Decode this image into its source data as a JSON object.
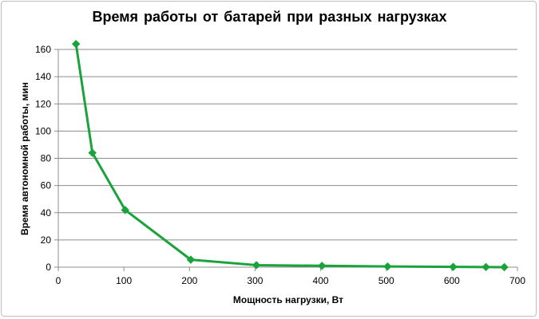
{
  "chart_data": {
    "type": "line",
    "title": "Время работы  от батарей  при разных  нагрузках",
    "xlabel": "Мощность нагрузки, Вт",
    "ylabel": "Время автономной работы, мин",
    "xlim": [
      0,
      700
    ],
    "ylim": [
      0,
      160
    ],
    "xticks": [
      0,
      100,
      200,
      300,
      400,
      500,
      600,
      700
    ],
    "yticks": [
      0,
      20,
      40,
      60,
      80,
      100,
      120,
      140,
      160
    ],
    "grid": "horizontal",
    "legend": "none",
    "series": [
      {
        "color": "#1aa33a",
        "marker": "diamond",
        "x": [
          27,
          52,
          102,
          202,
          302,
          402,
          502,
          602,
          652,
          680
        ],
        "y": [
          164,
          84,
          42,
          5.5,
          1.5,
          1,
          0.5,
          0.2,
          0.1,
          0
        ]
      }
    ]
  }
}
